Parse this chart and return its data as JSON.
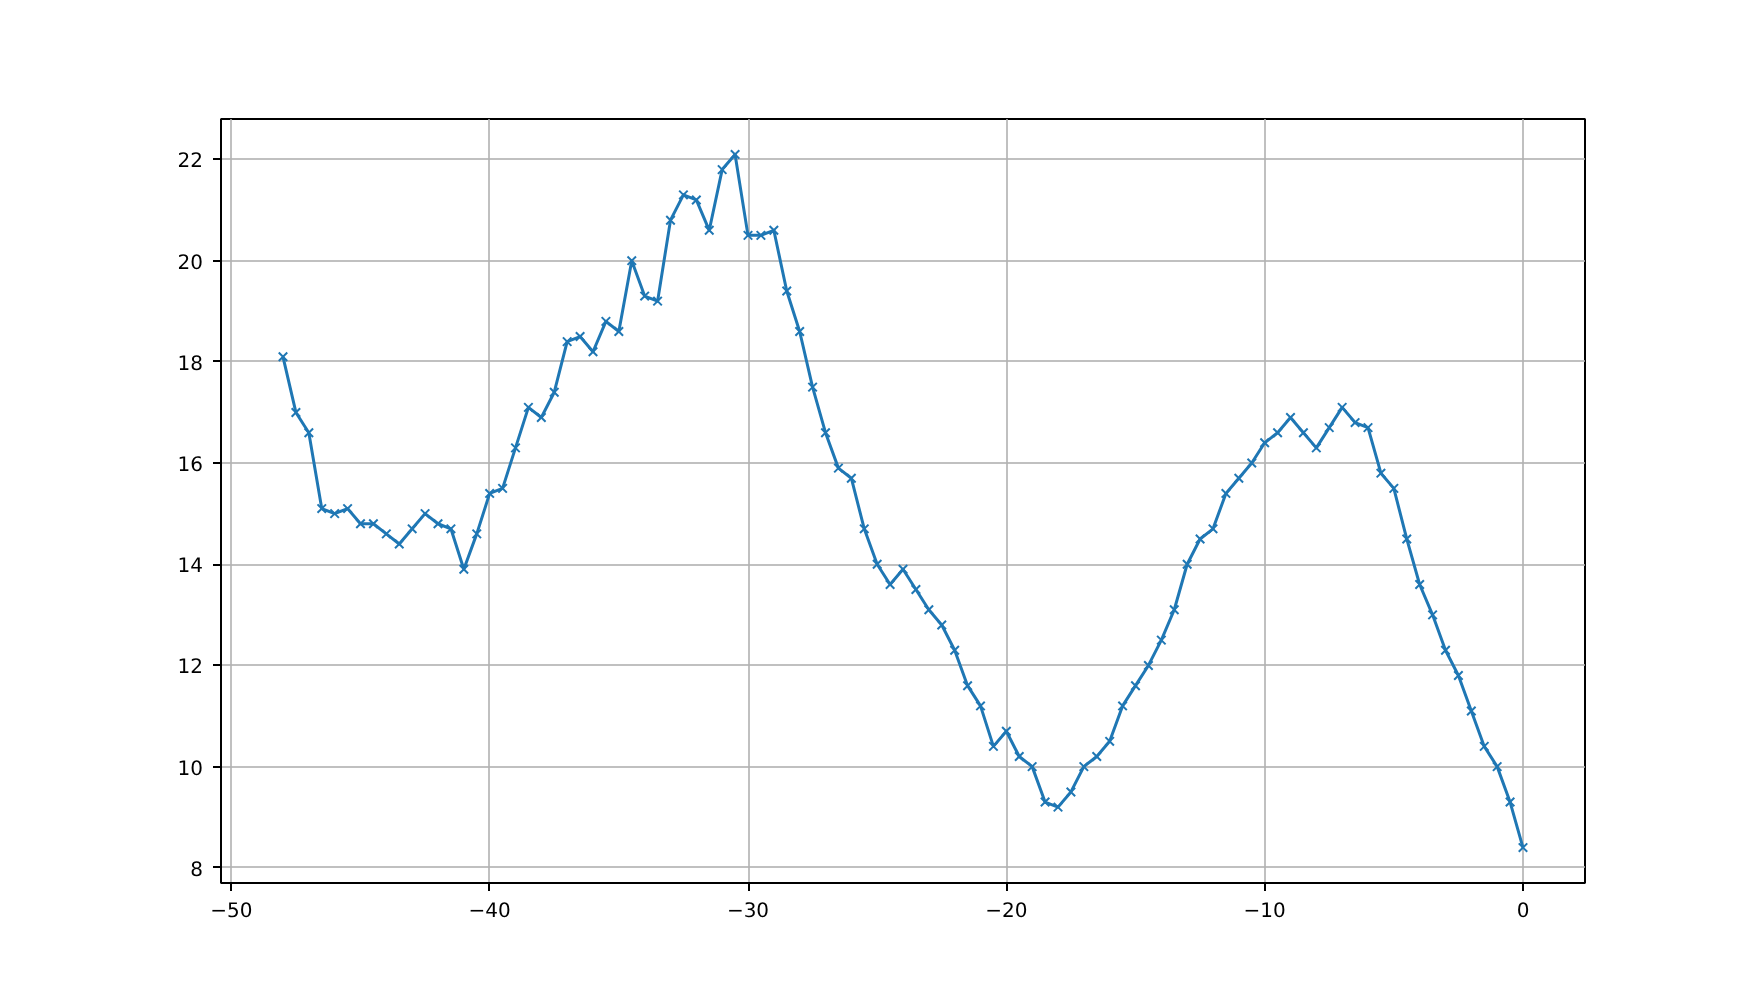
{
  "chart_data": {
    "type": "line",
    "marker": "cross",
    "grid": true,
    "xlim": [
      -50.4,
      2.4
    ],
    "ylim": [
      7.7,
      22.8
    ],
    "xticks": [
      {
        "value": -50,
        "label": "−50"
      },
      {
        "value": -40,
        "label": "−40"
      },
      {
        "value": -30,
        "label": "−30"
      },
      {
        "value": -20,
        "label": "−20"
      },
      {
        "value": -10,
        "label": "−10"
      },
      0
    ],
    "yticks": [
      8,
      10,
      12,
      14,
      16,
      18,
      20,
      22
    ],
    "x": [
      -48,
      -47.5,
      -47,
      -46.5,
      -46,
      -45.5,
      -45,
      -44.5,
      -44,
      -43.5,
      -43,
      -42.5,
      -42,
      -41.5,
      -41,
      -40.5,
      -40,
      -39.5,
      -39,
      -38.5,
      -38,
      -37.5,
      -37,
      -36.5,
      -36,
      -35.5,
      -35,
      -34.5,
      -34,
      -33.5,
      -33,
      -32.5,
      -32,
      -31.5,
      -31,
      -30.5,
      -30,
      -29.5,
      -29,
      -28.5,
      -28,
      -27.5,
      -27,
      -26.5,
      -26,
      -25.5,
      -25,
      -24.5,
      -24,
      -23.5,
      -23,
      -22.5,
      -22,
      -21.5,
      -21,
      -20.5,
      -20,
      -19.5,
      -19,
      -18.5,
      -18,
      -17.5,
      -17,
      -16.5,
      -16,
      -15.5,
      -15,
      -14.5,
      -14,
      -13.5,
      -13,
      -12.5,
      -12,
      -11.5,
      -11,
      -10.5,
      -10,
      -9.5,
      -9,
      -8.5,
      -8,
      -7.5,
      -7,
      -6.5,
      -6,
      -5.5,
      -5,
      -4.5,
      -4,
      -3.5,
      -3,
      -2.5,
      -2,
      -1.5,
      -1,
      -0.5,
      0
    ],
    "series": [
      {
        "color": "#1f77b4",
        "values": [
          18.1,
          17.0,
          16.6,
          15.1,
          15.0,
          15.1,
          14.8,
          14.8,
          14.6,
          14.4,
          14.7,
          15.0,
          14.8,
          14.7,
          13.9,
          14.6,
          15.4,
          15.5,
          16.3,
          17.1,
          16.9,
          17.4,
          18.4,
          18.5,
          18.2,
          18.8,
          18.6,
          20.0,
          19.3,
          19.2,
          20.8,
          21.3,
          21.2,
          20.6,
          21.8,
          22.1,
          20.5,
          20.5,
          20.6,
          19.4,
          18.6,
          17.5,
          16.6,
          15.9,
          15.7,
          14.7,
          14.0,
          13.6,
          13.9,
          13.5,
          13.1,
          12.8,
          12.3,
          11.6,
          11.2,
          10.4,
          10.7,
          10.2,
          10.0,
          9.3,
          9.2,
          9.5,
          10.0,
          10.2,
          10.5,
          11.2,
          11.6,
          12.0,
          12.5,
          13.1,
          14.0,
          14.5,
          14.7,
          15.4,
          15.7,
          16.0,
          16.4,
          16.6,
          16.9,
          16.6,
          16.3,
          16.7,
          17.1,
          16.8,
          16.7,
          15.8,
          15.5,
          14.5,
          13.6,
          13.0,
          12.3,
          11.8,
          11.1,
          10.4,
          10.0,
          9.3,
          8.4
        ]
      }
    ]
  }
}
